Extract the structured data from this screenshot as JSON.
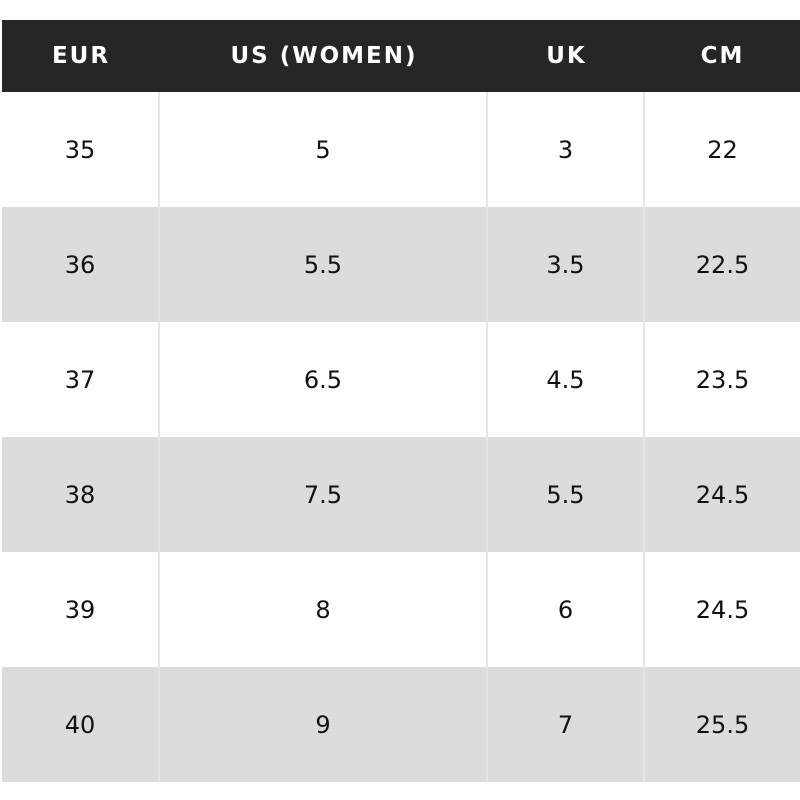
{
  "table": {
    "header": [
      "EUR",
      "US (WOMEN)",
      "UK",
      "CM"
    ],
    "rows": [
      [
        "35",
        "5",
        "3",
        "22"
      ],
      [
        "36",
        "5.5",
        "3.5",
        "22.5"
      ],
      [
        "37",
        "6.5",
        "4.5",
        "23.5"
      ],
      [
        "38",
        "7.5",
        "5.5",
        "24.5"
      ],
      [
        "39",
        "8",
        "6",
        "24.5"
      ],
      [
        "40",
        "9",
        "7",
        "25.5"
      ]
    ]
  }
}
